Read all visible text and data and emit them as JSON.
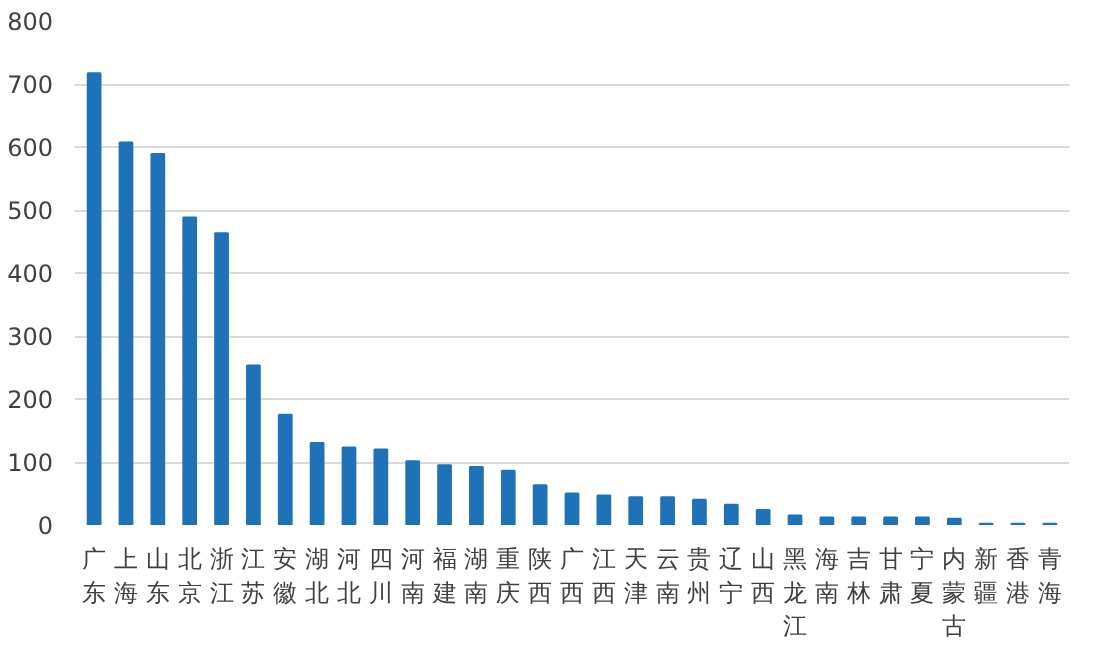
{
  "chart_data": {
    "type": "bar",
    "categories": [
      "广东",
      "上海",
      "山东",
      "北京",
      "浙江",
      "江苏",
      "安徽",
      "湖北",
      "河北",
      "四川",
      "河南",
      "福建",
      "湖南",
      "重庆",
      "陕西",
      "广西",
      "江西",
      "天津",
      "云南",
      "贵州",
      "辽宁",
      "山西",
      "黑龙江",
      "海南",
      "吉林",
      "甘肃",
      "宁夏",
      "内蒙古",
      "新疆",
      "香港",
      "青海"
    ],
    "values": [
      717,
      607,
      589,
      488,
      463,
      253,
      175,
      130,
      123,
      120,
      101,
      95,
      92,
      86,
      63,
      50,
      47,
      44,
      44,
      40,
      32,
      24,
      15,
      12,
      12,
      12,
      12,
      10,
      2,
      2,
      2
    ],
    "color": "#1f72b8",
    "ylim": [
      0,
      800
    ],
    "yticks": [
      0,
      100,
      200,
      300,
      400,
      500,
      600,
      700,
      800
    ],
    "grid": "y"
  }
}
